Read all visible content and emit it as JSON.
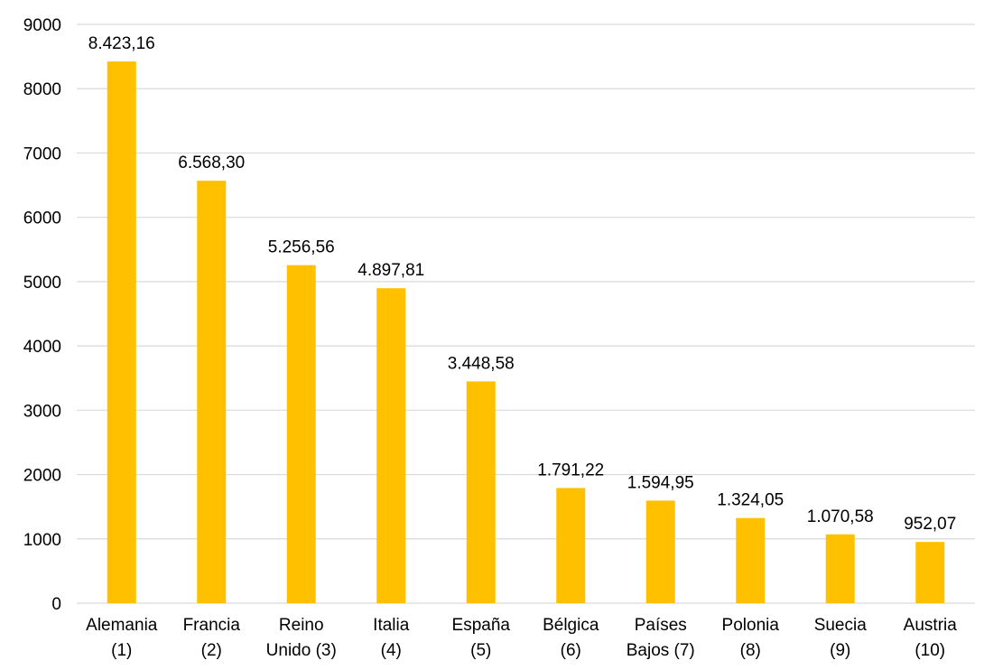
{
  "chart_data": {
    "type": "bar",
    "title": "",
    "xlabel": "",
    "ylabel": "",
    "categories": [
      [
        "Alemania",
        "(1)"
      ],
      [
        "Francia",
        "(2)"
      ],
      [
        "Reino",
        "Unido (3)"
      ],
      [
        "Italia",
        "(4)"
      ],
      [
        "España",
        "(5)"
      ],
      [
        "Bélgica",
        "(6)"
      ],
      [
        "Países",
        "Bajos (7)"
      ],
      [
        "Polonia",
        "(8)"
      ],
      [
        "Suecia",
        "(9)"
      ],
      [
        "Austria",
        "(10)"
      ]
    ],
    "values": [
      8423.16,
      6568.3,
      5256.56,
      4897.81,
      3448.58,
      1791.22,
      1594.95,
      1324.05,
      1070.58,
      952.07
    ],
    "data_labels": [
      "8.423,16",
      "6.568,30",
      "5.256,56",
      "4.897,81",
      "3.448,58",
      "1.791,22",
      "1.594,95",
      "1.324,05",
      "1.070,58",
      "952,07"
    ],
    "ylim": [
      0,
      9000
    ],
    "yticks": [
      0,
      1000,
      2000,
      3000,
      4000,
      5000,
      6000,
      7000,
      8000,
      9000
    ],
    "grid": true,
    "legend": "none",
    "bar_color": "#FFC000",
    "grid_color": "#d9d9d9",
    "text_color": "#000000"
  }
}
